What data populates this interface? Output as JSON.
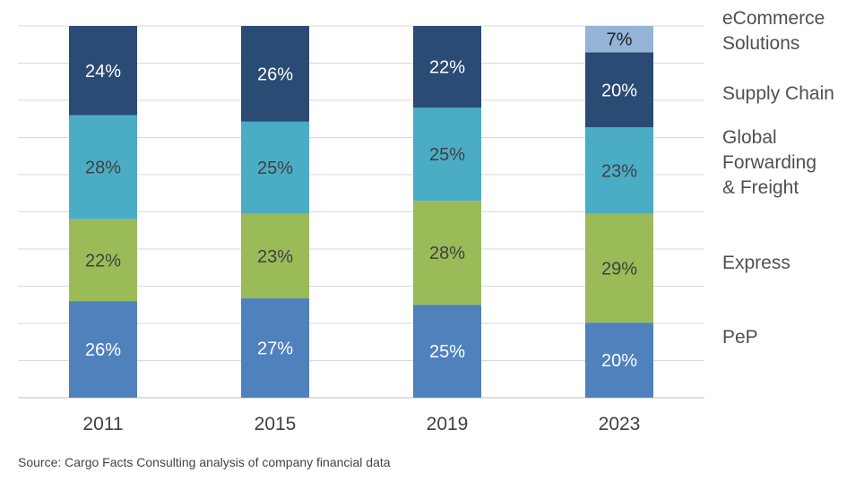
{
  "chart_data": {
    "type": "bar",
    "stacked": true,
    "categories": [
      "2011",
      "2015",
      "2019",
      "2023"
    ],
    "series": [
      {
        "name": "PeP",
        "values": [
          26,
          27,
          25,
          20
        ],
        "labels": [
          "26%",
          "27%",
          "25%",
          "20%"
        ],
        "color": "#4f81bd",
        "text_color": "#ffffff"
      },
      {
        "name": "Express",
        "values": [
          22,
          23,
          28,
          29
        ],
        "labels": [
          "22%",
          "23%",
          "28%",
          "29%"
        ],
        "color": "#9bbb59",
        "text_color": "#404040"
      },
      {
        "name": "Global Forwarding & Freight",
        "values": [
          28,
          25,
          25,
          23
        ],
        "labels": [
          "28%",
          "25%",
          "25%",
          "23%"
        ],
        "color": "#4bacc6",
        "text_color": "#404040"
      },
      {
        "name": "Supply Chain",
        "values": [
          24,
          26,
          22,
          20
        ],
        "labels": [
          "24%",
          "26%",
          "22%",
          "20%"
        ],
        "color": "#2a4b74",
        "text_color": "#ffffff"
      },
      {
        "name": "eCommerce Solutions",
        "values": [
          0,
          0,
          0,
          7
        ],
        "labels": [
          "",
          "",
          "",
          "7%"
        ],
        "color": "#95b3d7",
        "text_color": "#202020"
      }
    ],
    "legend": {
      "placement": "right",
      "entries": [
        {
          "lines": [
            "eCommerce",
            "Solutions"
          ]
        },
        {
          "lines": [
            "Supply Chain"
          ]
        },
        {
          "lines": [
            "Global",
            "Forwarding",
            "& Freight"
          ]
        },
        {
          "lines": [
            "Express"
          ]
        },
        {
          "lines": [
            "PeP"
          ]
        }
      ]
    },
    "ylim": [
      0,
      100
    ],
    "grid": true,
    "source": "Source: Cargo Facts Consulting analysis of company financial data"
  }
}
